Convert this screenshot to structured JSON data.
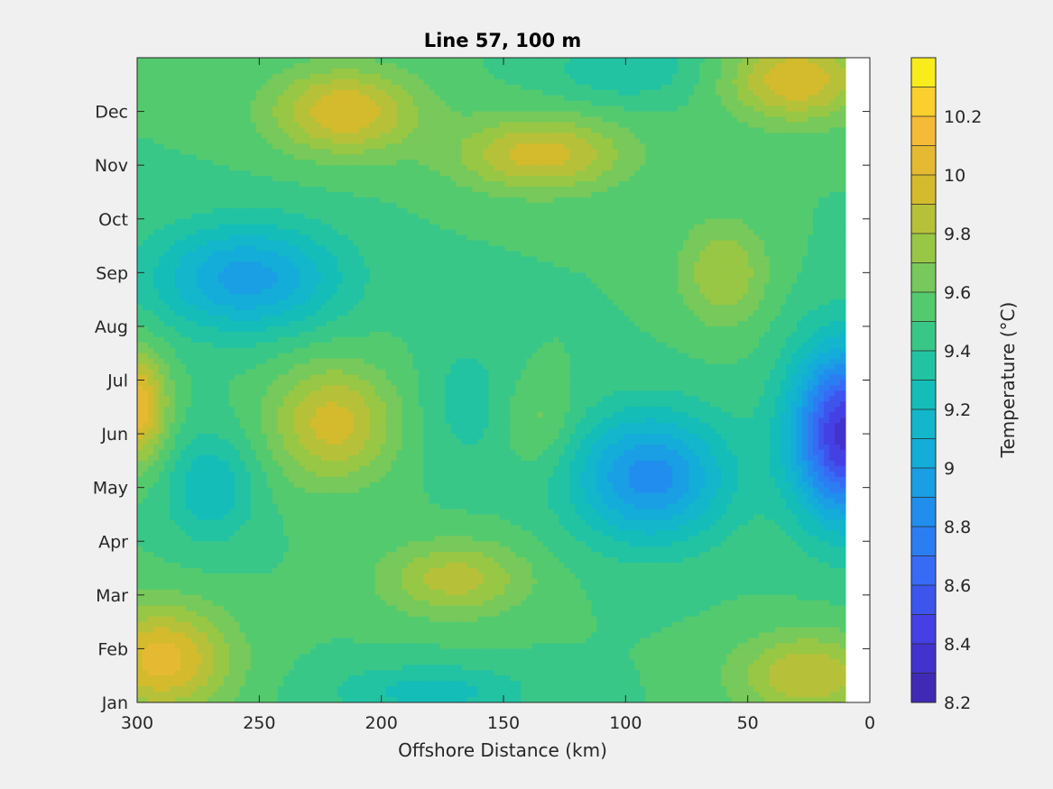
{
  "chart_data": {
    "type": "contour",
    "title": "Line 57, 100 m",
    "xlabel": "Offshore Distance (km)",
    "colorbar_label": "Temperature (°C)",
    "xlim": [
      300,
      0
    ],
    "x_direction": "reversed",
    "x_ticks": [
      "300",
      "250",
      "200",
      "150",
      "100",
      "50",
      "0"
    ],
    "y_ticks": [
      "Jan",
      "Feb",
      "Mar",
      "Apr",
      "May",
      "Jun",
      "Jul",
      "Aug",
      "Sep",
      "Oct",
      "Nov",
      "Dec"
    ],
    "data_extent_km": [
      10,
      300
    ],
    "clim": [
      8.2,
      10.4
    ],
    "colorbar_ticks": [
      "8.2",
      "8.4",
      "8.6",
      "8.8",
      "9",
      "9.2",
      "9.4",
      "9.6",
      "9.8",
      "10",
      "10.2"
    ],
    "contour_levels": [
      8.2,
      8.3,
      8.4,
      8.5,
      8.6,
      8.7,
      8.8,
      8.9,
      9.0,
      9.1,
      9.2,
      9.3,
      9.4,
      9.5,
      9.6,
      9.7,
      9.8,
      9.9,
      10.0,
      10.1,
      10.2,
      10.3,
      10.4
    ],
    "colormap": "parula",
    "grid": false,
    "features": [
      {
        "region": "near-shore, May–Jul",
        "approx_km": 10,
        "approx_value": 8.25
      },
      {
        "region": "mid-shelf, May",
        "approx_km": 80,
        "approx_value": 8.85
      },
      {
        "region": "offshore, Sep",
        "approx_km": 250,
        "approx_value": 8.9
      },
      {
        "region": "offshore, Jan–Feb",
        "approx_km": 290,
        "approx_value": 10.2
      },
      {
        "region": "offshore, Dec",
        "approx_km": 215,
        "approx_value": 10.1
      },
      {
        "region": "Nov",
        "approx_km": 135,
        "approx_value": 10.0
      },
      {
        "region": "Jun",
        "approx_km": 220,
        "approx_value": 10.05
      },
      {
        "region": "Jun, near 300 km edge",
        "approx_km": 300,
        "approx_value": 10.1
      },
      {
        "region": "Mar",
        "approx_km": 165,
        "approx_value": 9.95
      },
      {
        "region": "Sep",
        "approx_km": 60,
        "approx_value": 9.6
      },
      {
        "region": "Jun",
        "approx_km": 135,
        "approx_value": 9.55
      },
      {
        "region": "Dec–Jan",
        "approx_km": 25,
        "approx_value": 10.0
      }
    ]
  }
}
